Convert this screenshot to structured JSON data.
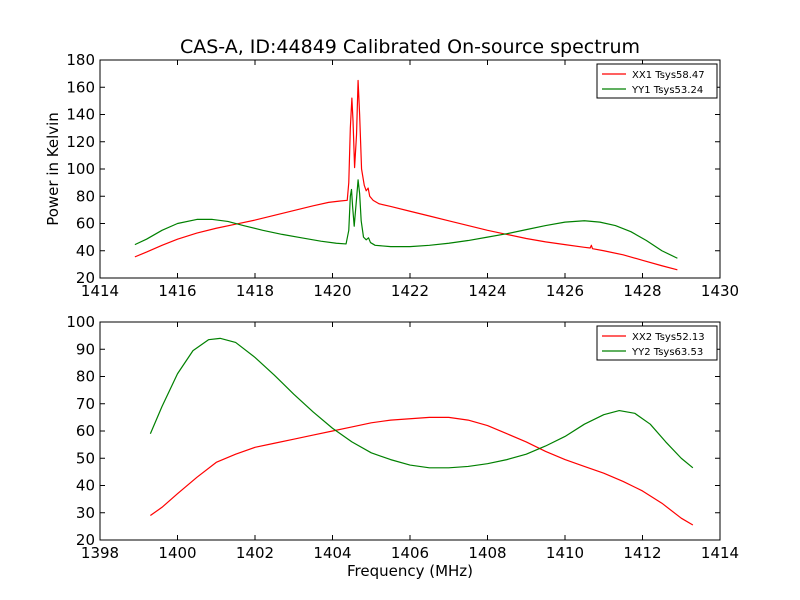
{
  "figure": {
    "title": "CAS-A, ID:44849 Calibrated On-source spectrum",
    "xlabel": "Frequency (MHz)"
  },
  "chart_data": [
    {
      "type": "line",
      "ylabel": "Power in Kelvin",
      "xlim": [
        1414,
        1430
      ],
      "ylim": [
        20,
        180
      ],
      "xticks": [
        1414,
        1416,
        1418,
        1420,
        1422,
        1424,
        1426,
        1428,
        1430
      ],
      "yticks": [
        20,
        40,
        60,
        80,
        100,
        120,
        140,
        160,
        180
      ],
      "legend_position": "top-right",
      "series": [
        {
          "name": "XX1 Tsys58.47",
          "color": "#ff0000",
          "points": [
            [
              1414.9,
              35.5
            ],
            [
              1415.2,
              39
            ],
            [
              1415.6,
              44
            ],
            [
              1416.0,
              48.5
            ],
            [
              1416.5,
              53
            ],
            [
              1417.0,
              56.5
            ],
            [
              1417.5,
              59.5
            ],
            [
              1418.0,
              62.5
            ],
            [
              1418.5,
              66
            ],
            [
              1419.0,
              69.5
            ],
            [
              1419.5,
              73
            ],
            [
              1419.9,
              75.5
            ],
            [
              1420.2,
              76.5
            ],
            [
              1420.38,
              77
            ],
            [
              1420.42,
              90
            ],
            [
              1420.46,
              130
            ],
            [
              1420.5,
              152
            ],
            [
              1420.53,
              135
            ],
            [
              1420.57,
              101
            ],
            [
              1420.62,
              125
            ],
            [
              1420.66,
              165
            ],
            [
              1420.7,
              140
            ],
            [
              1420.75,
              100
            ],
            [
              1420.82,
              88
            ],
            [
              1420.87,
              84
            ],
            [
              1420.92,
              86
            ],
            [
              1420.96,
              80
            ],
            [
              1421.05,
              77
            ],
            [
              1421.2,
              74.5
            ],
            [
              1421.5,
              72.5
            ],
            [
              1422.0,
              69
            ],
            [
              1422.5,
              65.5
            ],
            [
              1423.0,
              62
            ],
            [
              1423.5,
              58.5
            ],
            [
              1424.0,
              55
            ],
            [
              1424.5,
              52
            ],
            [
              1425.0,
              49
            ],
            [
              1425.5,
              46.5
            ],
            [
              1426.0,
              44.5
            ],
            [
              1426.5,
              42.5
            ],
            [
              1426.65,
              42
            ],
            [
              1426.68,
              44
            ],
            [
              1426.71,
              41.5
            ],
            [
              1427.0,
              40
            ],
            [
              1427.5,
              37
            ],
            [
              1428.0,
              33
            ],
            [
              1428.5,
              29
            ],
            [
              1428.9,
              26
            ]
          ]
        },
        {
          "name": "YY1 Tsys53.24",
          "color": "#008000",
          "points": [
            [
              1414.9,
              44.5
            ],
            [
              1415.2,
              48.5
            ],
            [
              1415.6,
              55
            ],
            [
              1416.0,
              60
            ],
            [
              1416.5,
              63
            ],
            [
              1416.9,
              63
            ],
            [
              1417.3,
              61.5
            ],
            [
              1417.7,
              58.5
            ],
            [
              1418.2,
              55
            ],
            [
              1418.7,
              52
            ],
            [
              1419.2,
              49.5
            ],
            [
              1419.7,
              47
            ],
            [
              1420.1,
              45.5
            ],
            [
              1420.35,
              45
            ],
            [
              1420.42,
              55
            ],
            [
              1420.46,
              80
            ],
            [
              1420.49,
              85
            ],
            [
              1420.52,
              72
            ],
            [
              1420.56,
              58
            ],
            [
              1420.62,
              78
            ],
            [
              1420.66,
              92
            ],
            [
              1420.7,
              82
            ],
            [
              1420.74,
              62
            ],
            [
              1420.8,
              50
            ],
            [
              1420.87,
              48
            ],
            [
              1420.93,
              49.5
            ],
            [
              1420.98,
              46
            ],
            [
              1421.1,
              44
            ],
            [
              1421.5,
              43
            ],
            [
              1422.0,
              43
            ],
            [
              1422.5,
              44
            ],
            [
              1423.0,
              45.5
            ],
            [
              1423.5,
              47.5
            ],
            [
              1424.0,
              50
            ],
            [
              1424.5,
              52.5
            ],
            [
              1425.0,
              55.5
            ],
            [
              1425.5,
              58.5
            ],
            [
              1426.0,
              61
            ],
            [
              1426.5,
              62
            ],
            [
              1426.9,
              61
            ],
            [
              1427.3,
              58.5
            ],
            [
              1427.7,
              54
            ],
            [
              1428.1,
              47.5
            ],
            [
              1428.5,
              40
            ],
            [
              1428.9,
              34.5
            ]
          ]
        }
      ]
    },
    {
      "type": "line",
      "ylabel": "",
      "xlim": [
        1398,
        1414
      ],
      "ylim": [
        20,
        100
      ],
      "xticks": [
        1398,
        1400,
        1402,
        1404,
        1406,
        1408,
        1410,
        1412,
        1414
      ],
      "yticks": [
        20,
        30,
        40,
        50,
        60,
        70,
        80,
        90,
        100
      ],
      "legend_position": "top-right",
      "series": [
        {
          "name": "XX2 Tsys52.13",
          "color": "#ff0000",
          "points": [
            [
              1399.3,
              29
            ],
            [
              1399.6,
              32
            ],
            [
              1400.0,
              37
            ],
            [
              1400.5,
              43
            ],
            [
              1401.0,
              48.5
            ],
            [
              1401.5,
              51.5
            ],
            [
              1402.0,
              54
            ],
            [
              1402.5,
              55.5
            ],
            [
              1403.0,
              57
            ],
            [
              1403.5,
              58.5
            ],
            [
              1404.0,
              60
            ],
            [
              1404.5,
              61.5
            ],
            [
              1405.0,
              63
            ],
            [
              1405.5,
              64
            ],
            [
              1406.0,
              64.5
            ],
            [
              1406.5,
              65
            ],
            [
              1407.0,
              65
            ],
            [
              1407.5,
              64
            ],
            [
              1408.0,
              62
            ],
            [
              1408.5,
              59
            ],
            [
              1409.0,
              56
            ],
            [
              1409.5,
              52.5
            ],
            [
              1410.0,
              49.5
            ],
            [
              1410.5,
              47
            ],
            [
              1411.0,
              44.5
            ],
            [
              1411.5,
              41.5
            ],
            [
              1412.0,
              38
            ],
            [
              1412.5,
              33.5
            ],
            [
              1413.0,
              28
            ],
            [
              1413.3,
              25.5
            ]
          ]
        },
        {
          "name": "YY2 Tsys63.53",
          "color": "#008000",
          "points": [
            [
              1399.3,
              59
            ],
            [
              1399.6,
              69
            ],
            [
              1400.0,
              81
            ],
            [
              1400.4,
              89.5
            ],
            [
              1400.8,
              93.5
            ],
            [
              1401.1,
              94
            ],
            [
              1401.5,
              92.5
            ],
            [
              1402.0,
              87
            ],
            [
              1402.5,
              80.5
            ],
            [
              1403.0,
              73.5
            ],
            [
              1403.5,
              67
            ],
            [
              1404.0,
              61
            ],
            [
              1404.5,
              56
            ],
            [
              1405.0,
              52
            ],
            [
              1405.5,
              49.5
            ],
            [
              1406.0,
              47.5
            ],
            [
              1406.5,
              46.5
            ],
            [
              1407.0,
              46.5
            ],
            [
              1407.5,
              47
            ],
            [
              1408.0,
              48
            ],
            [
              1408.5,
              49.5
            ],
            [
              1409.0,
              51.5
            ],
            [
              1409.5,
              54.5
            ],
            [
              1410.0,
              58
            ],
            [
              1410.5,
              62.5
            ],
            [
              1411.0,
              66
            ],
            [
              1411.4,
              67.5
            ],
            [
              1411.8,
              66.5
            ],
            [
              1412.2,
              62.5
            ],
            [
              1412.6,
              56
            ],
            [
              1413.0,
              50
            ],
            [
              1413.3,
              46.5
            ]
          ]
        }
      ]
    }
  ]
}
